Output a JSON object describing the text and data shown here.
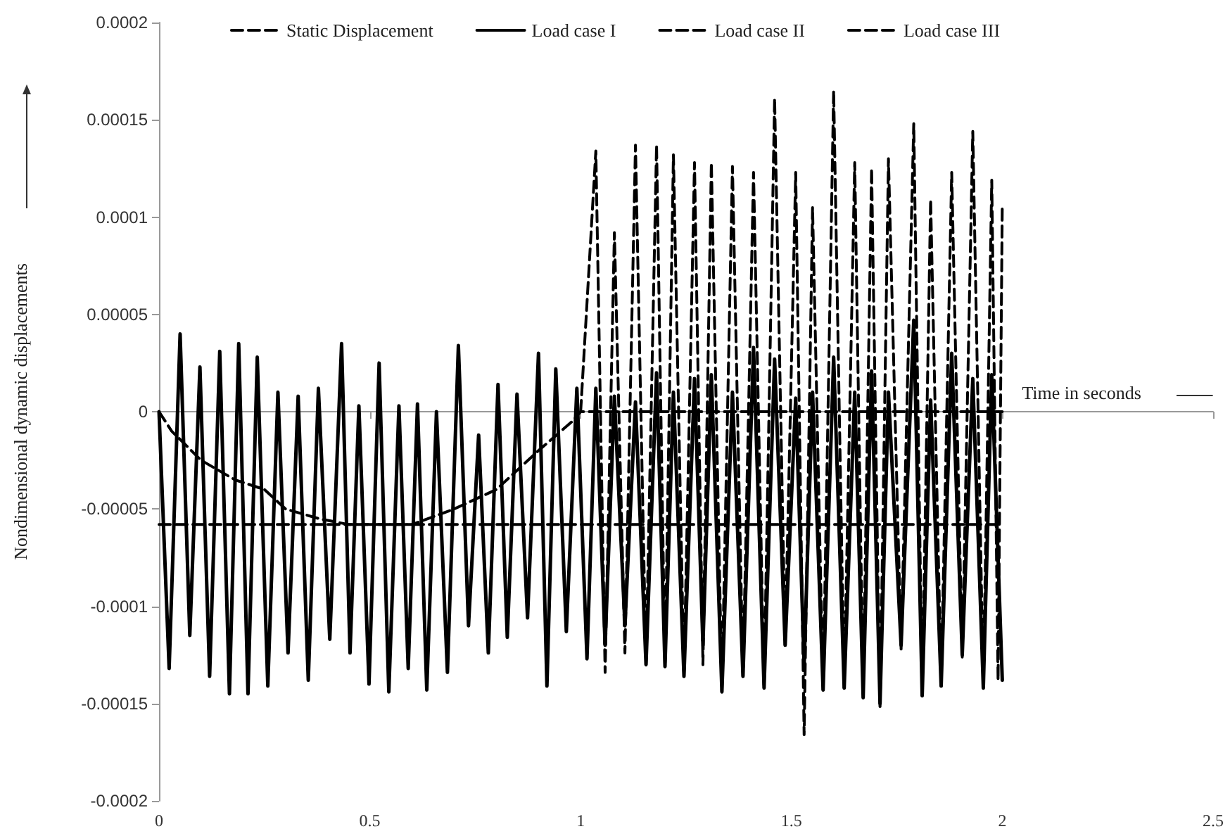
{
  "chart_data": {
    "type": "line",
    "xlabel": "Time in seconds",
    "ylabel": "Nondimensional dynamic displacements",
    "xlim": [
      0,
      2.5
    ],
    "xticks": [
      0,
      0.5,
      1,
      1.5,
      2,
      2.5
    ],
    "ylim": [
      -0.0002,
      0.0002
    ],
    "yticks": [
      -0.0002,
      -0.00015,
      -0.0001,
      {
        "value": -5e-05,
        "label": "-0.00005"
      },
      0,
      {
        "value": 5e-05,
        "label": "0.00005"
      },
      0.0001,
      0.00015,
      0.0002
    ],
    "legend": "top",
    "marker": "none",
    "series": [
      {
        "name": "Static Displacement",
        "color": "#000000",
        "line_style": "dashed",
        "x": [
          0,
          2
        ],
        "values": [
          -5.8e-05,
          -5.8e-05
        ]
      },
      {
        "name": "Load case I",
        "color": "#000000",
        "line_style": "solid",
        "x": [
          0,
          0.024,
          0.05,
          0.073,
          0.097,
          0.12,
          0.144,
          0.167,
          0.189,
          0.211,
          0.233,
          0.258,
          0.282,
          0.306,
          0.33,
          0.354,
          0.378,
          0.405,
          0.433,
          0.453,
          0.474,
          0.498,
          0.522,
          0.545,
          0.569,
          0.591,
          0.613,
          0.635,
          0.658,
          0.684,
          0.71,
          0.734,
          0.758,
          0.781,
          0.804,
          0.826,
          0.849,
          0.874,
          0.9,
          0.92,
          0.941,
          0.966,
          0.991,
          1.015,
          1.036,
          1.058,
          1.08,
          1.105,
          1.13,
          1.155,
          1.18,
          1.2,
          1.22,
          1.245,
          1.27,
          1.29,
          1.31,
          1.335,
          1.36,
          1.385,
          1.41,
          1.435,
          1.46,
          1.485,
          1.51,
          1.53,
          1.55,
          1.575,
          1.6,
          1.625,
          1.65,
          1.67,
          1.69,
          1.71,
          1.73,
          1.76,
          1.79,
          1.81,
          1.83,
          1.855,
          1.88,
          1.905,
          1.93,
          1.955,
          1.975,
          2.0
        ],
        "values": [
          0,
          -0.000132,
          4e-05,
          -0.000115,
          2.3e-05,
          -0.000136,
          3.1e-05,
          -0.000145,
          3.5e-05,
          -0.000145,
          2.8e-05,
          -0.000141,
          1e-05,
          -0.000124,
          8e-06,
          -0.000138,
          1.2e-05,
          -0.000117,
          3.5e-05,
          -0.000124,
          3e-06,
          -0.00014,
          2.5e-05,
          -0.000144,
          3e-06,
          -0.000132,
          4e-06,
          -0.000143,
          0,
          -0.000134,
          3.4e-05,
          -0.00011,
          -1.2e-05,
          -0.000124,
          1.4e-05,
          -0.000116,
          9e-06,
          -0.000106,
          3e-05,
          -0.000141,
          2.2e-05,
          -0.000113,
          1.2e-05,
          -0.000127,
          1.2e-05,
          -0.00012,
          8e-06,
          -0.00011,
          5e-06,
          -0.00013,
          2e-05,
          -0.000131,
          1e-05,
          -0.000136,
          1.7e-05,
          -0.00012,
          1.9e-05,
          -0.000144,
          1e-05,
          -0.000136,
          3.3e-05,
          -0.000142,
          2.7e-05,
          -0.00012,
          7e-06,
          -0.00013,
          1e-05,
          -0.000143,
          2.8e-05,
          -0.000142,
          1e-05,
          -0.000147,
          2.1e-05,
          -0.00015,
          1e-05,
          -0.00012,
          4.7e-05,
          -0.000146,
          6e-06,
          -0.000141,
          3e-05,
          -0.000125,
          1.7e-05,
          -0.000142,
          1.9e-05,
          -0.000138
        ]
      },
      {
        "name": "Load case II",
        "color": "#000000",
        "line_style": "dashed",
        "x": [
          1.0,
          1.036,
          1.058,
          1.08,
          1.105,
          1.13,
          1.155,
          1.18,
          1.2,
          1.22,
          1.245,
          1.27,
          1.29,
          1.31,
          1.335,
          1.36,
          1.385,
          1.41,
          1.435,
          1.46,
          1.485,
          1.51,
          1.53,
          1.55,
          1.575,
          1.6,
          1.625,
          1.65,
          1.67,
          1.69,
          1.71,
          1.73,
          1.76,
          1.79,
          1.81,
          1.83,
          1.855,
          1.88,
          1.905,
          1.93,
          1.955,
          1.975,
          1.99,
          2.0
        ],
        "values": [
          0,
          0.000134,
          -0.000134,
          9.2e-05,
          -0.000124,
          0.000137,
          -0.00013,
          0.000137,
          -0.000131,
          0.000132,
          -0.000136,
          0.000128,
          -0.00013,
          0.000128,
          -0.000144,
          0.000126,
          -0.000136,
          0.000123,
          -0.000142,
          0.000161,
          -0.00012,
          0.000123,
          -0.000166,
          0.000105,
          -0.000143,
          0.000165,
          -0.000142,
          0.000128,
          -0.000145,
          0.000125,
          -0.000153,
          0.00013,
          -0.000122,
          0.000148,
          -0.000146,
          0.000109,
          -0.000141,
          0.000123,
          -0.000127,
          0.000144,
          -0.000142,
          0.000119,
          -0.000138,
          0.000107
        ]
      },
      {
        "name": "Load case III",
        "color": "#000000",
        "line_style": "dashed",
        "x": [
          0,
          0.03,
          0.1,
          0.18,
          0.25,
          0.3,
          0.38,
          0.45,
          0.6,
          0.7,
          0.8,
          0.9,
          0.98,
          1.0,
          1.5,
          2.0
        ],
        "values": [
          0,
          -1e-05,
          -2.5e-05,
          -3.5e-05,
          -4e-05,
          -5e-05,
          -5.5e-05,
          -5.8e-05,
          -5.8e-05,
          -5e-05,
          -4e-05,
          -2e-05,
          -5e-06,
          0,
          0,
          0
        ]
      }
    ]
  }
}
